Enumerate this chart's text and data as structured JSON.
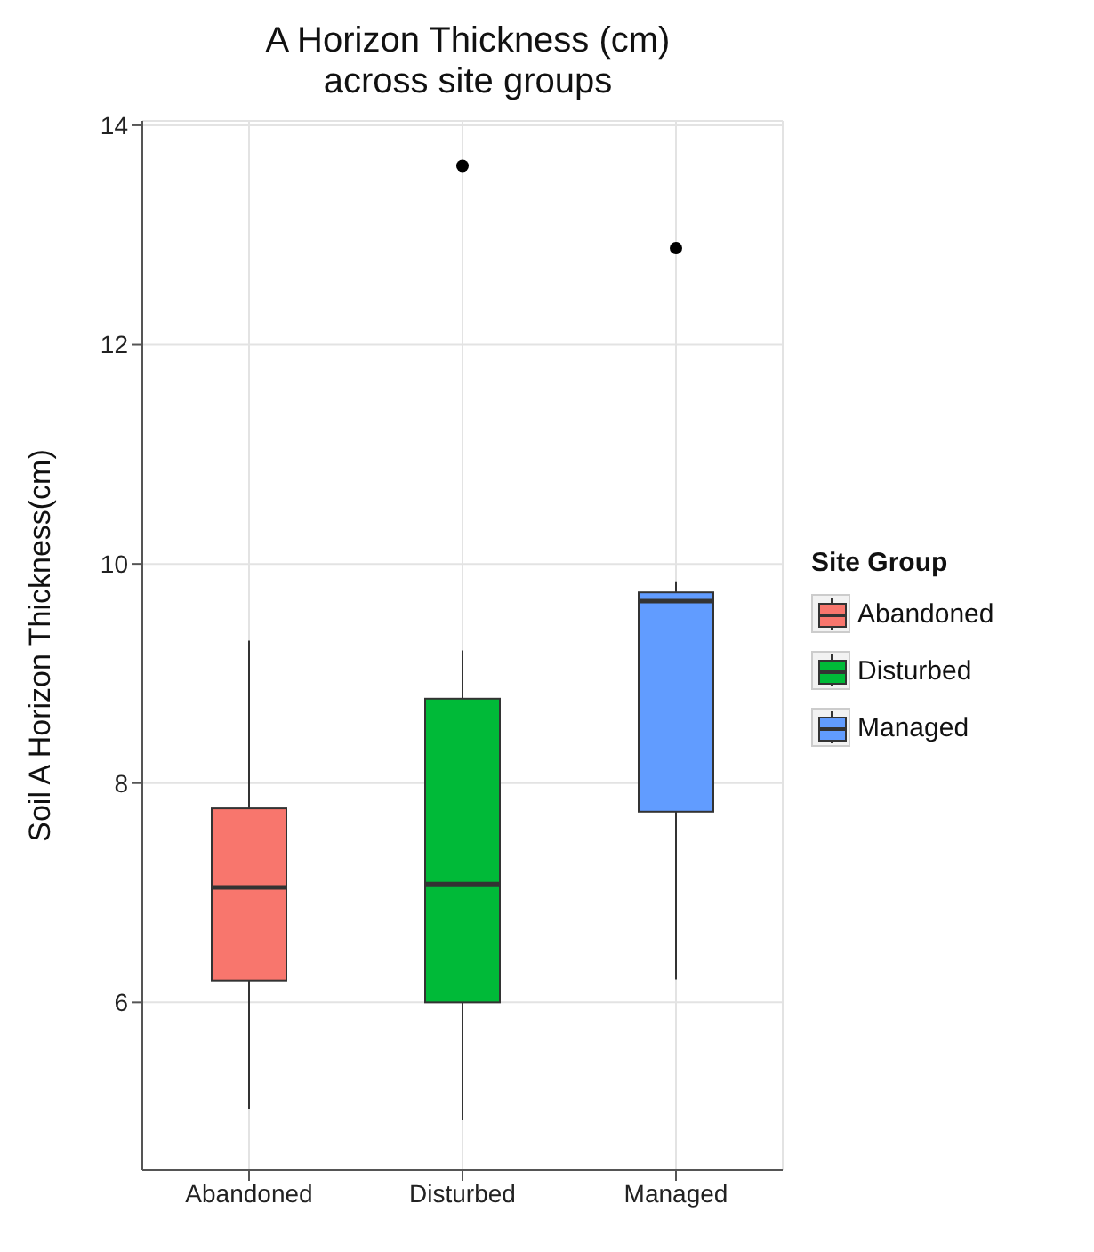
{
  "chart_data": {
    "type": "box",
    "title": "A Horizon Thickness (cm) across site groups",
    "ylabel": "Soil A Horizon Thickness(cm)",
    "legend_title": "Site Group",
    "categories": [
      "Abandoned",
      "Disturbed",
      "Managed"
    ],
    "series": [
      {
        "name": "Abandoned",
        "color": "#f8766d",
        "boxes": [
          {
            "low": 5.03,
            "q1": 6.2,
            "median": 7.05,
            "q3": 7.77,
            "high": 9.3
          },
          null,
          null
        ]
      },
      {
        "name": "Disturbed",
        "color": "#00ba38",
        "boxes": [
          null,
          {
            "low": 4.93,
            "q1": 6.0,
            "median": 7.08,
            "q3": 8.77,
            "high": 9.21,
            "outliers": [
              13.63
            ]
          },
          null
        ]
      },
      {
        "name": "Managed",
        "color": "#619cff",
        "boxes": [
          null,
          null,
          {
            "low": 6.21,
            "q1": 7.74,
            "median": 9.66,
            "q3": 9.74,
            "high": 9.84,
            "outliers": [
              12.88
            ]
          }
        ]
      }
    ],
    "ylim": [
      4.47,
      14.04
    ],
    "yticks": [
      6,
      8,
      10,
      12,
      14
    ],
    "grid": true,
    "legend": "right"
  }
}
